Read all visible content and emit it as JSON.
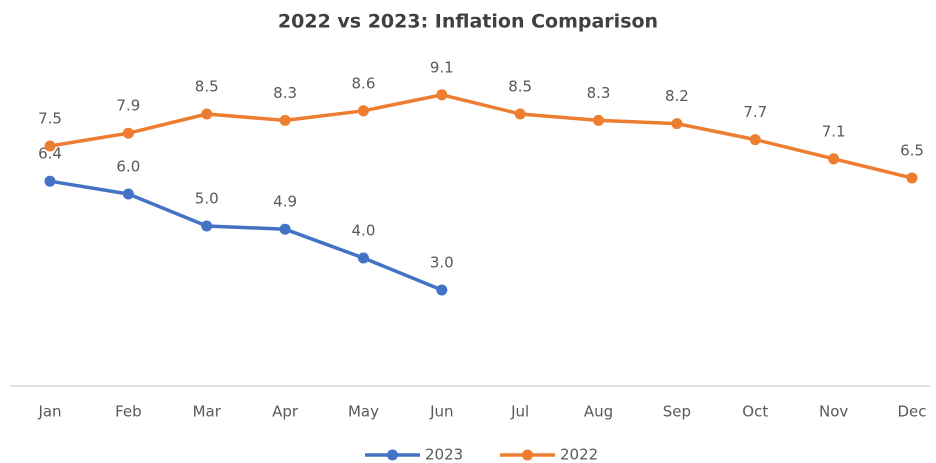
{
  "chart_data": {
    "type": "line",
    "title": "2022 vs 2023: Inflation Comparison",
    "categories": [
      "Jan",
      "Feb",
      "Mar",
      "Apr",
      "May",
      "Jun",
      "Jul",
      "Aug",
      "Sep",
      "Oct",
      "Nov",
      "Dec"
    ],
    "series": [
      {
        "name": "2023",
        "color": "#4472c4",
        "values": [
          6.4,
          6,
          5,
          4.9,
          4,
          3,
          null,
          null,
          null,
          null,
          null,
          null
        ],
        "value_labels": [
          "6.4",
          "6.0",
          "5.0",
          "4.9",
          "4.0",
          "3.0",
          null,
          null,
          null,
          null,
          null,
          null
        ]
      },
      {
        "name": "2022",
        "color": "#ed7d31",
        "values": [
          7.5,
          7.9,
          8.5,
          8.3,
          8.6,
          9.1,
          8.5,
          8.3,
          8.2,
          7.7,
          7.1,
          6.5
        ],
        "value_labels": [
          "7.5",
          "7.9",
          "8.5",
          "8.3",
          "8.6",
          "9.1",
          "8.5",
          "8.3",
          "8.2",
          "7.7",
          "7.1",
          "6.5"
        ]
      }
    ],
    "ylim": [
      0,
      10
    ],
    "legend": "bottom"
  }
}
